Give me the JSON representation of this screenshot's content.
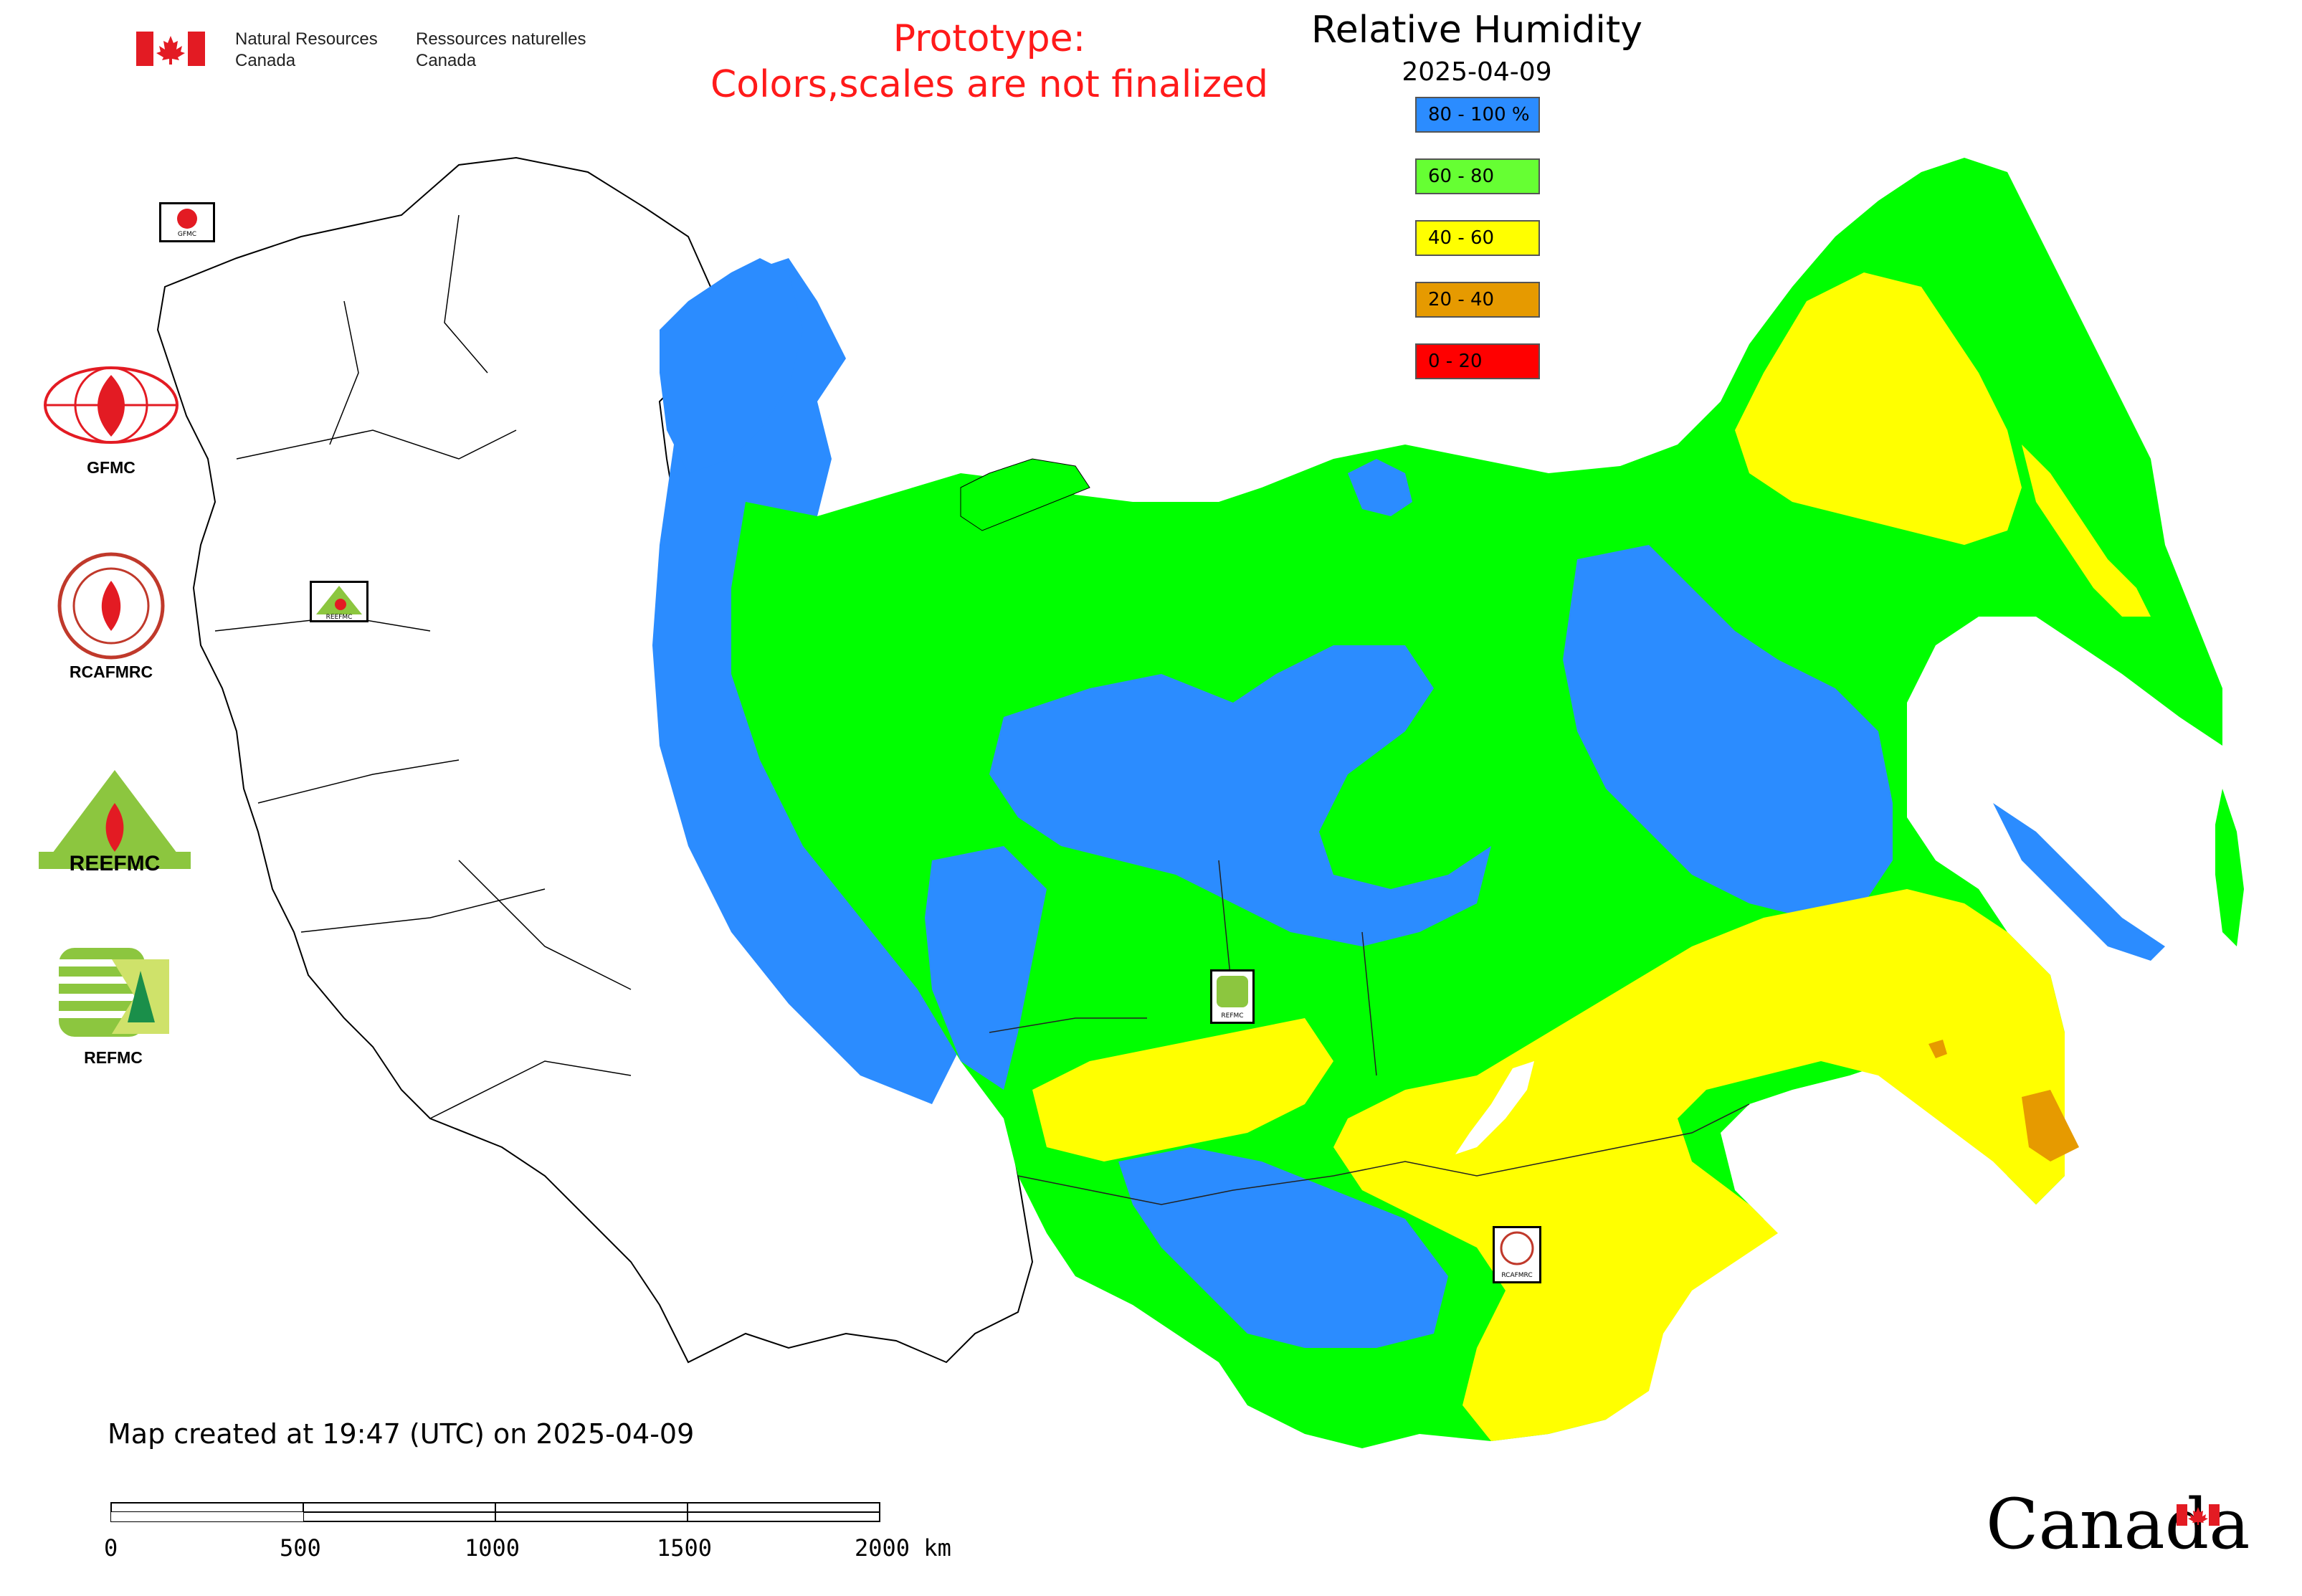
{
  "header": {
    "org_en_line1": "Natural Resources",
    "org_en_line2": "Canada",
    "org_fr_line1": "Ressources naturelles",
    "org_fr_line2": "Canada"
  },
  "prototype_notice": {
    "line1": "Prototype:",
    "line2": "Colors,scales are not finalized"
  },
  "legend": {
    "title": "Relative Humidity",
    "date": "2025-04-09",
    "items": [
      {
        "label": "80 - 100 %",
        "color": "#2b8cff"
      },
      {
        "label": "60 - 80",
        "color": "#66ff33"
      },
      {
        "label": "40 - 60",
        "color": "#ffff00"
      },
      {
        "label": "20 - 40",
        "color": "#e69a00"
      },
      {
        "label": "0 - 20",
        "color": "#ff0000"
      }
    ]
  },
  "side_logos": [
    {
      "name": "GFMC"
    },
    {
      "name": "RCAFMRC"
    },
    {
      "name": "REEFMC"
    },
    {
      "name": "REFMC"
    }
  ],
  "map_markers": {
    "gfmc_small": "GFMC",
    "reefmc_small": "REEFMC",
    "refmc_small": "REFMC",
    "rcafmrc_small": "RCAFMRC"
  },
  "footer": {
    "created": "Map created at 19:47 (UTC) on 2025-04-09",
    "scale_labels": [
      "0",
      "500",
      "1000",
      "1500",
      "2000 km"
    ]
  },
  "watermark": "Canada"
}
